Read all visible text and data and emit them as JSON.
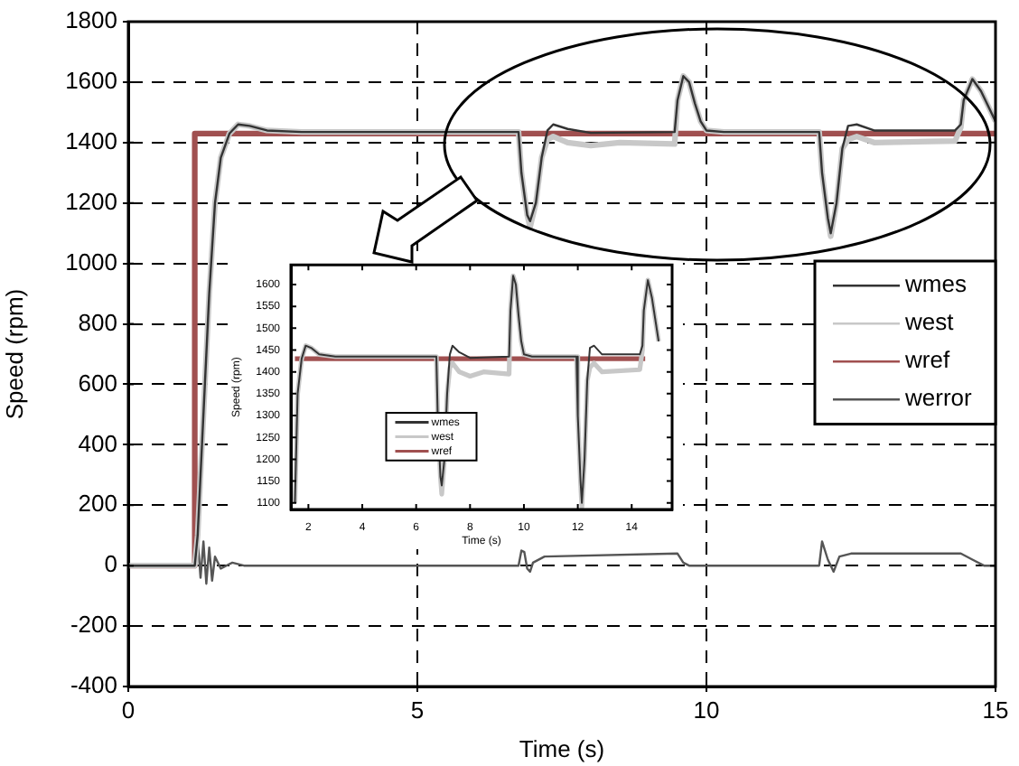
{
  "chart_data": [
    {
      "type": "line",
      "xlabel": "Time (s)",
      "ylabel": "Speed (rpm)",
      "xlim": [
        0,
        15
      ],
      "ylim": [
        -400,
        1800
      ],
      "xticks": [
        0,
        5,
        10,
        15
      ],
      "yticks": [
        -400,
        -200,
        0,
        200,
        400,
        600,
        800,
        1000,
        1200,
        1400,
        1600,
        1800
      ],
      "grid": true,
      "legend": "right",
      "line_style": "solid",
      "marker": "none",
      "series": [
        {
          "name": "wmes",
          "color": "#333333",
          "x": [
            0,
            1.15,
            1.2,
            1.3,
            1.4,
            1.5,
            1.6,
            1.75,
            1.9,
            2.1,
            2.4,
            3,
            6.75,
            6.8,
            6.9,
            6.95,
            7.05,
            7.15,
            7.25,
            7.35,
            7.6,
            8,
            9.45,
            9.5,
            9.6,
            9.7,
            9.8,
            9.9,
            10,
            10.3,
            11.95,
            12,
            12.1,
            12.15,
            12.25,
            12.35,
            12.45,
            12.6,
            12.9,
            14.3,
            14.4,
            14.45,
            14.6,
            14.75,
            15
          ],
          "values": [
            0,
            0,
            100,
            500,
            900,
            1200,
            1350,
            1430,
            1460,
            1455,
            1440,
            1435,
            1435,
            1300,
            1160,
            1140,
            1200,
            1350,
            1440,
            1460,
            1445,
            1432,
            1435,
            1540,
            1620,
            1600,
            1530,
            1470,
            1440,
            1435,
            1435,
            1300,
            1150,
            1100,
            1200,
            1380,
            1455,
            1460,
            1440,
            1440,
            1460,
            1540,
            1610,
            1570,
            1470
          ]
        },
        {
          "name": "west",
          "color": "#c8c8c8",
          "x": [
            0,
            1.15,
            1.2,
            1.3,
            1.4,
            1.5,
            1.6,
            1.75,
            1.9,
            2.1,
            2.4,
            3,
            6.75,
            6.8,
            6.9,
            6.95,
            7.05,
            7.15,
            7.25,
            7.35,
            7.6,
            8,
            8.5,
            9.45,
            9.5,
            9.6,
            9.7,
            9.8,
            9.9,
            10,
            10.3,
            11.95,
            12,
            12.1,
            12.15,
            12.25,
            12.35,
            12.45,
            12.6,
            12.9,
            14.3,
            14.4,
            14.45,
            14.6,
            14.75,
            15
          ],
          "values": [
            0,
            0,
            100,
            500,
            900,
            1200,
            1350,
            1430,
            1460,
            1455,
            1440,
            1435,
            1435,
            1300,
            1160,
            1120,
            1200,
            1350,
            1410,
            1420,
            1400,
            1390,
            1400,
            1395,
            1540,
            1620,
            1600,
            1530,
            1470,
            1440,
            1435,
            1435,
            1300,
            1150,
            1090,
            1200,
            1380,
            1410,
            1420,
            1400,
            1405,
            1450,
            1540,
            1610,
            1570,
            1470
          ]
        },
        {
          "name": "wref",
          "color": "#a05050",
          "x": [
            0,
            1.15,
            1.15,
            15
          ],
          "values": [
            0,
            0,
            1430,
            1430
          ]
        },
        {
          "name": "werror",
          "color": "#555555",
          "x": [
            0,
            1.15,
            1.2,
            1.25,
            1.3,
            1.35,
            1.4,
            1.45,
            1.5,
            1.6,
            1.8,
            2,
            6.75,
            6.8,
            6.85,
            6.9,
            6.95,
            7,
            7.2,
            9.5,
            9.6,
            9.7,
            11.95,
            12,
            12.1,
            12.2,
            12.3,
            12.5,
            14.4,
            14.6,
            14.8,
            15
          ],
          "values": [
            0,
            0,
            90,
            -40,
            80,
            -60,
            60,
            -50,
            30,
            -10,
            10,
            0,
            0,
            50,
            45,
            -10,
            -20,
            10,
            30,
            40,
            10,
            0,
            0,
            80,
            20,
            -20,
            30,
            40,
            40,
            20,
            0,
            0
          ]
        }
      ]
    },
    {
      "type": "line",
      "xlabel": "Time (s)",
      "ylabel": "Speed (rpm)",
      "xlim": [
        1.35,
        15.5
      ],
      "ylim": [
        1085,
        1645
      ],
      "xticks": [
        2,
        4,
        6,
        8,
        10,
        12,
        14
      ],
      "yticks": [
        1100,
        1150,
        1200,
        1250,
        1300,
        1350,
        1400,
        1450,
        1500,
        1550,
        1600
      ],
      "legend": "bottom left",
      "line_style": "solid",
      "marker": "none",
      "series": [
        {
          "name": "wmes",
          "color": "#333333",
          "x": [
            1.5,
            1.6,
            1.75,
            1.9,
            2.1,
            2.4,
            3,
            6.75,
            6.8,
            6.9,
            6.95,
            7.05,
            7.15,
            7.25,
            7.35,
            7.6,
            8,
            9.45,
            9.5,
            9.6,
            9.7,
            9.8,
            9.9,
            10,
            10.3,
            11.95,
            12,
            12.1,
            12.15,
            12.25,
            12.35,
            12.45,
            12.6,
            12.9,
            14.3,
            14.4,
            14.45,
            14.6,
            14.75,
            15
          ],
          "values": [
            1100,
            1350,
            1430,
            1460,
            1455,
            1440,
            1435,
            1435,
            1300,
            1160,
            1140,
            1200,
            1350,
            1440,
            1460,
            1445,
            1432,
            1435,
            1540,
            1620,
            1600,
            1530,
            1470,
            1440,
            1435,
            1435,
            1300,
            1150,
            1100,
            1200,
            1380,
            1455,
            1460,
            1440,
            1440,
            1460,
            1540,
            1610,
            1570,
            1470
          ]
        },
        {
          "name": "west",
          "color": "#c8c8c8",
          "x": [
            1.5,
            1.6,
            1.75,
            1.9,
            2.1,
            2.4,
            3,
            6.75,
            6.8,
            6.9,
            6.95,
            7.05,
            7.15,
            7.25,
            7.35,
            7.6,
            8,
            8.5,
            9.45,
            9.5,
            9.6,
            9.7,
            9.8,
            9.9,
            10,
            10.3,
            11.95,
            12,
            12.1,
            12.15,
            12.25,
            12.35,
            12.45,
            12.6,
            12.9,
            14.3,
            14.4,
            14.45,
            14.6,
            14.75,
            15
          ],
          "values": [
            1100,
            1350,
            1430,
            1460,
            1455,
            1440,
            1435,
            1435,
            1300,
            1160,
            1120,
            1200,
            1350,
            1410,
            1420,
            1400,
            1390,
            1400,
            1395,
            1540,
            1620,
            1600,
            1530,
            1470,
            1440,
            1435,
            1435,
            1300,
            1150,
            1090,
            1200,
            1380,
            1410,
            1420,
            1400,
            1405,
            1450,
            1540,
            1610,
            1570,
            1470
          ]
        },
        {
          "name": "wref",
          "color": "#a05050",
          "x": [
            1.5,
            14.5
          ],
          "values": [
            1430,
            1430
          ]
        }
      ]
    }
  ]
}
